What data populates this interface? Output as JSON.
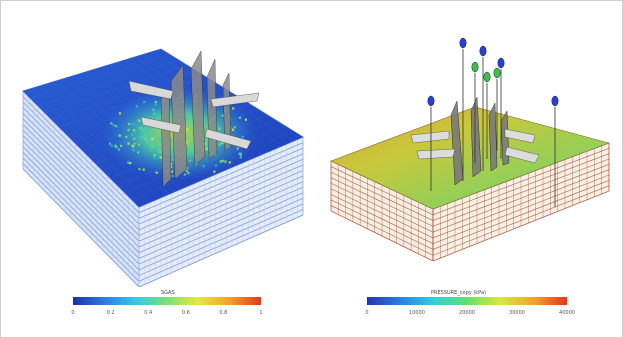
{
  "left_colorbar": {
    "title": "SGAS",
    "ticks": [
      "0",
      "0.2",
      "0.4",
      "0.6",
      "0.8",
      "1"
    ],
    "colors": [
      "#1e2fa8",
      "#2f7ce0",
      "#37c8e8",
      "#79e07a",
      "#e8e83a",
      "#f2a12a",
      "#e23b1f"
    ]
  },
  "right_colorbar": {
    "title": "PRESSURE_copy (kPa)",
    "ticks": [
      "0",
      "10000",
      "20000",
      "30000",
      "40000"
    ],
    "colors": [
      "#2433b0",
      "#2a7fe0",
      "#2fd0d8",
      "#63e06e",
      "#d8e83a",
      "#f2a42a",
      "#e8331c"
    ]
  },
  "well_marker_colors": {
    "injector": "#2b3fd6",
    "producer": "#3fbf4a"
  }
}
